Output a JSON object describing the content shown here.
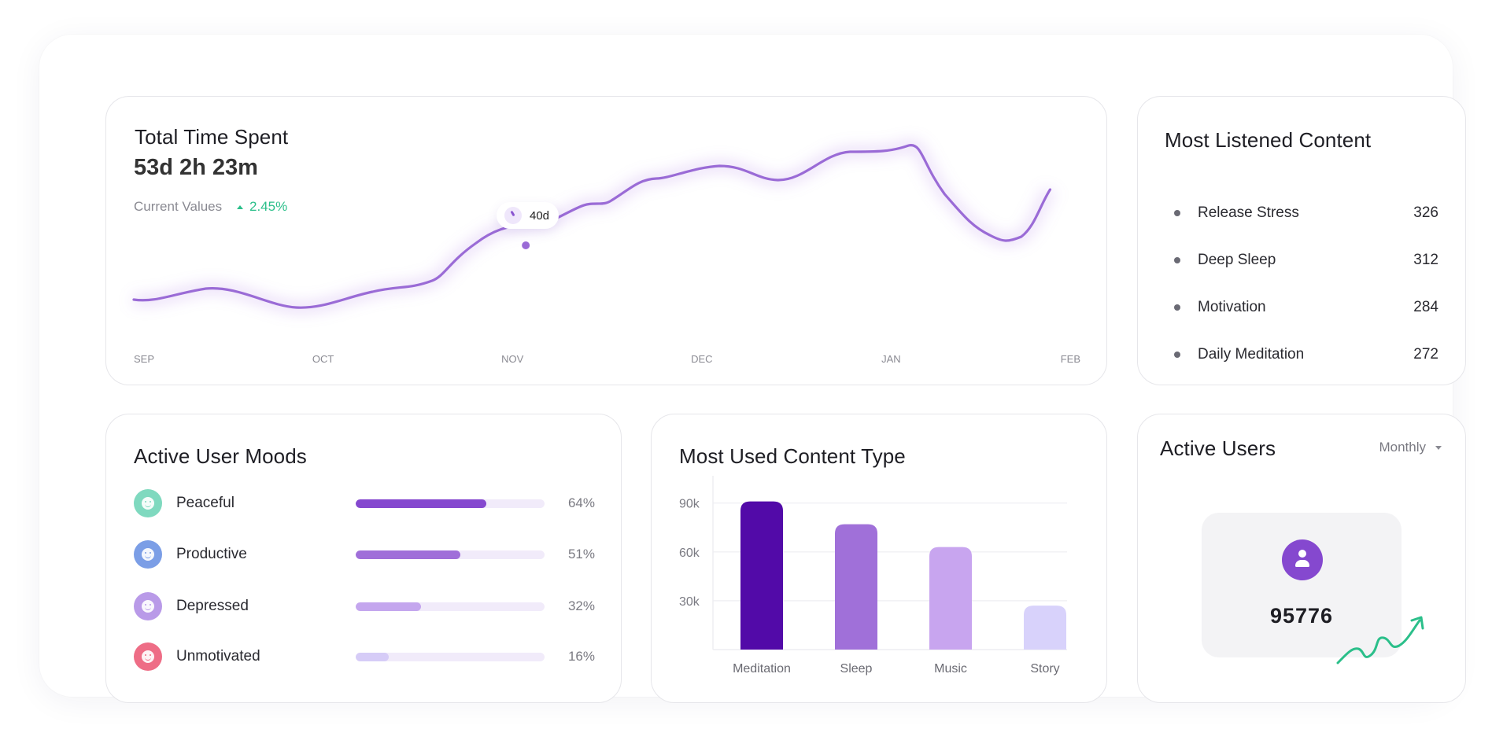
{
  "total_time": {
    "title": "Total Time Spent",
    "value": "53d 2h 23m",
    "current_label": "Current Values",
    "delta": "2.45%",
    "tooltip": "40d",
    "chart_data": {
      "type": "line",
      "x": [
        "SEP",
        "OCT",
        "NOV",
        "DEC",
        "JAN",
        "FEB"
      ],
      "months": [
        "SEP",
        "OCT",
        "NOV",
        "DEC",
        "JAN",
        "FEB"
      ],
      "line_color": "#9a6bd6"
    }
  },
  "most_listened": {
    "title": "Most Listened Content",
    "items": [
      {
        "name": "Release Stress",
        "count": "326"
      },
      {
        "name": "Deep Sleep",
        "count": "312"
      },
      {
        "name": "Motivation",
        "count": "284"
      },
      {
        "name": "Daily Meditation",
        "count": "272"
      }
    ]
  },
  "moods": {
    "title": "Active User Moods",
    "items": [
      {
        "label": "Peaceful",
        "pct": "64%",
        "value": 64,
        "icon": "peaceful-face-icon",
        "icon_color": "#7fd9bf",
        "bar_color": "#8548cf"
      },
      {
        "label": "Productive",
        "pct": "51%",
        "value": 51,
        "icon": "productive-face-icon",
        "icon_color": "#7b9ee6",
        "bar_color": "#a06fd9"
      },
      {
        "label": "Depressed",
        "pct": "32%",
        "value": 32,
        "icon": "depressed-face-icon",
        "icon_color": "#b99ae8",
        "bar_color": "#c4a6ee"
      },
      {
        "label": "Unmotivated",
        "pct": "16%",
        "value": 16,
        "icon": "unmotivated-face-icon",
        "icon_color": "#ee6d86",
        "bar_color": "#d6ccf7"
      }
    ]
  },
  "content_type": {
    "title": "Most Used Content Type",
    "chart_data": {
      "type": "bar",
      "categories": [
        "Meditation",
        "Sleep",
        "Music",
        "Story"
      ],
      "values": [
        91000,
        77000,
        63000,
        27000
      ],
      "yticks": [
        "90k",
        "60k",
        "30k"
      ],
      "ytick_values": [
        90000,
        60000,
        30000
      ],
      "colors": [
        "#520aa8",
        "#a070d9",
        "#c8a5ef",
        "#d8d2fb"
      ],
      "grid": true
    }
  },
  "active_users": {
    "title": "Active Users",
    "period": "Monthly",
    "count": "95776",
    "trend_color": "#2bbf8a"
  }
}
